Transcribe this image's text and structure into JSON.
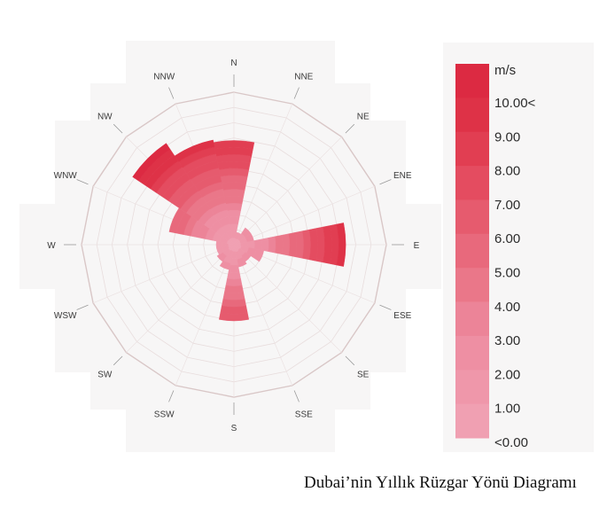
{
  "chart_data": {
    "type": "wind-rose",
    "title": "",
    "directions": [
      "N",
      "NNE",
      "NE",
      "ENE",
      "E",
      "ESE",
      "SE",
      "SSE",
      "S",
      "SSW",
      "SW",
      "WSW",
      "W",
      "WNW",
      "NW",
      "NNW"
    ],
    "frequency": [
      20.5,
      2.5,
      4.0,
      4.0,
      22.0,
      6.0,
      4.0,
      4.5,
      15.0,
      5.0,
      4.0,
      3.5,
      3.5,
      13.0,
      24.0,
      21.0
    ],
    "radial_max": 30,
    "radial_rings": 10,
    "legend": {
      "unit": "m/s",
      "labels": [
        "10.00<",
        "9.00",
        "8.00",
        "7.00",
        "6.00",
        "5.00",
        "4.00",
        "3.00",
        "2.00",
        "1.00",
        "<0.00"
      ],
      "colors": [
        "#dc2a42",
        "#de3247",
        "#e13e52",
        "#e44c60",
        "#e65b6e",
        "#e8697c",
        "#ea7789",
        "#ec8498",
        "#ee8fa3",
        "#ef97aa",
        "#f0a0b2"
      ]
    }
  },
  "caption": "Dubai’nin Yıllık Rüzgar Yönü Diagramı"
}
